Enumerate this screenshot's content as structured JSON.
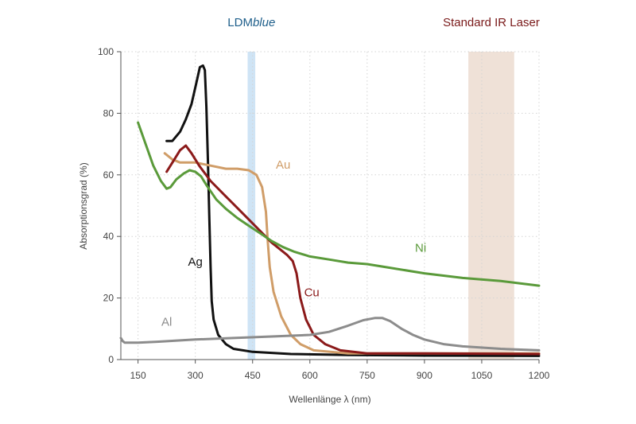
{
  "chart_data": {
    "type": "line",
    "xlabel": "Wellenlänge λ (nm)",
    "ylabel": "Absorptionsgrad (%)",
    "xlim": [
      105,
      1200
    ],
    "ylim": [
      0,
      100
    ],
    "x_ticks": [
      150,
      300,
      450,
      600,
      750,
      900,
      1050,
      1200
    ],
    "y_ticks": [
      0,
      20,
      40,
      60,
      80,
      100
    ],
    "grid": true,
    "legend": "none",
    "bands": [
      {
        "label_prefix": "LDM",
        "label_italic": "blue",
        "x_range": [
          437,
          457
        ],
        "color": "#cfe4f5",
        "label_color": "#1f5f8b"
      },
      {
        "label": "Standard IR Laser",
        "x_range": [
          1015,
          1135
        ],
        "color": "#efe1d7",
        "label_color": "#7a1a1a"
      }
    ],
    "series": [
      {
        "name": "Ag",
        "color": "#111111",
        "points": [
          [
            225,
            71
          ],
          [
            240,
            71
          ],
          [
            260,
            74
          ],
          [
            275,
            78
          ],
          [
            290,
            83
          ],
          [
            303,
            90
          ],
          [
            312,
            95
          ],
          [
            320,
            95.5
          ],
          [
            325,
            94
          ],
          [
            329,
            82
          ],
          [
            333,
            65
          ],
          [
            337,
            45
          ],
          [
            340,
            30
          ],
          [
            343,
            19
          ],
          [
            348,
            13
          ],
          [
            360,
            8
          ],
          [
            380,
            5
          ],
          [
            400,
            3.5
          ],
          [
            450,
            2.5
          ],
          [
            550,
            1.8
          ],
          [
            700,
            1.5
          ],
          [
            900,
            1.3
          ],
          [
            1200,
            1.2
          ]
        ]
      },
      {
        "name": "Au",
        "color": "#d09d68",
        "points": [
          [
            220,
            67
          ],
          [
            240,
            65
          ],
          [
            260,
            64
          ],
          [
            300,
            64
          ],
          [
            340,
            63
          ],
          [
            380,
            62
          ],
          [
            410,
            62
          ],
          [
            440,
            61.5
          ],
          [
            460,
            60
          ],
          [
            475,
            56
          ],
          [
            485,
            48
          ],
          [
            490,
            38
          ],
          [
            495,
            30
          ],
          [
            505,
            22
          ],
          [
            525,
            14
          ],
          [
            550,
            8
          ],
          [
            575,
            5
          ],
          [
            610,
            3
          ],
          [
            700,
            2
          ],
          [
            850,
            2
          ],
          [
            1200,
            2
          ]
        ]
      },
      {
        "name": "Cu",
        "color": "#8b1a1a",
        "points": [
          [
            225,
            61
          ],
          [
            245,
            65
          ],
          [
            260,
            68
          ],
          [
            275,
            69.5
          ],
          [
            290,
            67
          ],
          [
            310,
            63
          ],
          [
            340,
            58
          ],
          [
            380,
            53
          ],
          [
            420,
            48
          ],
          [
            460,
            43
          ],
          [
            500,
            38
          ],
          [
            520,
            36
          ],
          [
            540,
            34
          ],
          [
            555,
            32
          ],
          [
            565,
            28
          ],
          [
            575,
            20
          ],
          [
            590,
            13
          ],
          [
            610,
            8
          ],
          [
            640,
            5
          ],
          [
            680,
            3
          ],
          [
            750,
            2
          ],
          [
            900,
            2
          ],
          [
            1200,
            1.8
          ]
        ]
      },
      {
        "name": "Ni",
        "color": "#5a9a3a",
        "points": [
          [
            150,
            77
          ],
          [
            170,
            70
          ],
          [
            190,
            63
          ],
          [
            210,
            58
          ],
          [
            225,
            55.5
          ],
          [
            235,
            56
          ],
          [
            250,
            58.5
          ],
          [
            270,
            60.5
          ],
          [
            285,
            61.5
          ],
          [
            300,
            61
          ],
          [
            315,
            59.5
          ],
          [
            330,
            56.5
          ],
          [
            355,
            52
          ],
          [
            380,
            49
          ],
          [
            410,
            46
          ],
          [
            440,
            43.5
          ],
          [
            470,
            41
          ],
          [
            500,
            38.5
          ],
          [
            530,
            36.5
          ],
          [
            560,
            35
          ],
          [
            600,
            33.5
          ],
          [
            650,
            32.5
          ],
          [
            700,
            31.5
          ],
          [
            750,
            31
          ],
          [
            800,
            30
          ],
          [
            900,
            28
          ],
          [
            1000,
            26.5
          ],
          [
            1100,
            25.5
          ],
          [
            1200,
            24
          ]
        ]
      },
      {
        "name": "Al",
        "color": "#8c8c8c",
        "points": [
          [
            105,
            7
          ],
          [
            110,
            6
          ],
          [
            115,
            5.5
          ],
          [
            130,
            5.5
          ],
          [
            150,
            5.5
          ],
          [
            200,
            5.8
          ],
          [
            300,
            6.5
          ],
          [
            400,
            7
          ],
          [
            500,
            7.5
          ],
          [
            600,
            8
          ],
          [
            650,
            9
          ],
          [
            700,
            11
          ],
          [
            740,
            12.8
          ],
          [
            770,
            13.5
          ],
          [
            790,
            13.5
          ],
          [
            810,
            12.5
          ],
          [
            840,
            10
          ],
          [
            870,
            8
          ],
          [
            900,
            6.5
          ],
          [
            950,
            5
          ],
          [
            1000,
            4.3
          ],
          [
            1100,
            3.5
          ],
          [
            1200,
            3
          ]
        ]
      }
    ],
    "series_labels": [
      {
        "text": "Ag",
        "x": 300,
        "y": 30.5,
        "color": "#111111"
      },
      {
        "text": "Au",
        "x": 530,
        "y": 62,
        "color": "#d09d68"
      },
      {
        "text": "Cu",
        "x": 605,
        "y": 20.5,
        "color": "#8b1a1a"
      },
      {
        "text": "Ni",
        "x": 890,
        "y": 35,
        "color": "#5a9a3a"
      },
      {
        "text": "Al",
        "x": 225,
        "y": 11,
        "color": "#8c8c8c"
      }
    ]
  }
}
